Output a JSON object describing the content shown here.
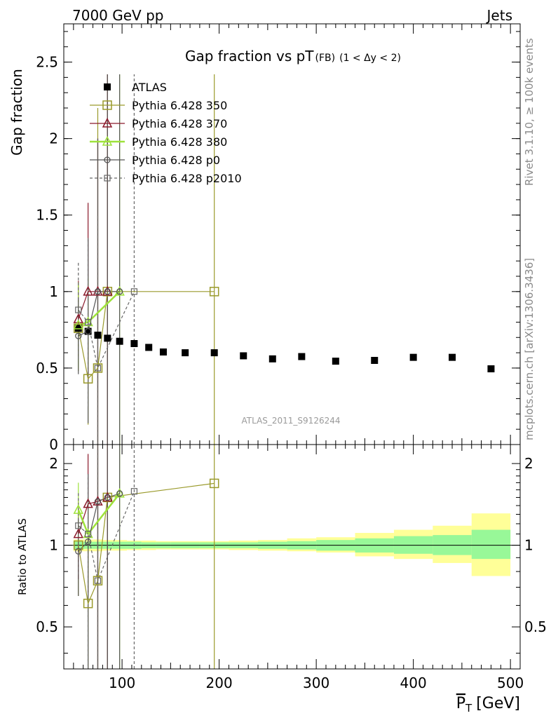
{
  "header": {
    "left": "7000 GeV pp",
    "right": "Jets"
  },
  "side_labels": {
    "rivet": "Rivet 3.1.10, ≥ 100k events",
    "mcplots": "mcplots.cern.ch [arXiv:1306.3436]"
  },
  "colors": {
    "ATLAS": "#000000",
    "p350": "#9a9a2b",
    "p370": "#8b1a2b",
    "p380": "#9ee23b",
    "p0": "#555555",
    "p2010": "#666666",
    "band_stat": "#98f898",
    "band_total": "#ffff98"
  },
  "chart_data": [
    {
      "type": "scatter",
      "title": "Gap fraction vs pT",
      "title_sub": "(FB)",
      "title_range": "(1 < Δy < 2)",
      "ylabel": "Gap fraction",
      "watermark": "ATLAS_2011_S9126244",
      "xlim": [
        40,
        510
      ],
      "ylim": [
        0,
        2.75
      ],
      "y_ticks": [
        0,
        0.5,
        1,
        1.5,
        2,
        2.5
      ],
      "y_tick_labels": [
        "0",
        "0.5",
        "1",
        "1.5",
        "2",
        "2.5"
      ],
      "grid": false,
      "legend_position": "top-left",
      "legend": [
        "ATLAS",
        "Pythia 6.428 350",
        "Pythia 6.428 370",
        "Pythia 6.428 380",
        "Pythia 6.428 p0",
        "Pythia 6.428 p2010"
      ],
      "series": [
        {
          "name": "ATLAS",
          "marker": "filled-square",
          "x": [
            55,
            65,
            75,
            85,
            97.5,
            112.5,
            127.5,
            142.5,
            165,
            195,
            225,
            255,
            285,
            320,
            360,
            400,
            440,
            480
          ],
          "y": [
            0.76,
            0.74,
            0.715,
            0.695,
            0.675,
            0.66,
            0.635,
            0.605,
            0.6,
            0.6,
            0.58,
            0.56,
            0.575,
            0.545,
            0.55,
            0.57,
            0.57,
            0.495
          ]
        },
        {
          "name": "Pythia 6.428 350",
          "marker": "open-square",
          "x": [
            55,
            65,
            75,
            85,
            195
          ],
          "y": [
            0.76,
            0.43,
            0.5,
            1.0,
            1.0
          ],
          "err": [
            0.28,
            0.3,
            1.7,
            1.42,
            1.42
          ]
        },
        {
          "name": "Pythia 6.428 370",
          "marker": "open-triangle",
          "x": [
            55,
            65,
            75,
            85
          ],
          "y": [
            0.82,
            1.0,
            1.0,
            1.0
          ],
          "err": [
            0.25,
            0.58,
            1.0,
            1.42
          ]
        },
        {
          "name": "Pythia 6.428 380",
          "marker": "open-triangle",
          "x": [
            55,
            65,
            97.5
          ],
          "y": [
            0.78,
            0.8,
            1.0
          ],
          "err": [
            0.28,
            0.3,
            1.42
          ]
        },
        {
          "name": "Pythia 6.428 p0",
          "marker": "open-circle",
          "x": [
            55,
            65,
            75,
            85,
            97.5
          ],
          "y": [
            0.71,
            0.74,
            1.0,
            1.0,
            1.0
          ],
          "err": [
            0.25,
            0.6,
            1.0,
            1.42,
            1.42
          ]
        },
        {
          "name": "Pythia 6.428 p2010",
          "marker": "open-square-small",
          "x": [
            55,
            65,
            75,
            112.5
          ],
          "y": [
            0.88,
            0.8,
            0.5,
            1.0
          ],
          "err": [
            0.32,
            0.55,
            1.0,
            1.42
          ]
        }
      ]
    },
    {
      "type": "scatter",
      "ylabel": "Ratio to ATLAS",
      "xlabel": "P̅T [GeV]",
      "xlabel_main": "P",
      "xlabel_sub": "T",
      "xlabel_unit": "[GeV]",
      "xlim": [
        40,
        510
      ],
      "ylim": [
        0.35,
        2.35
      ],
      "log_y": true,
      "x_ticks": [
        100,
        200,
        300,
        400,
        500
      ],
      "x_tick_labels": [
        "100",
        "200",
        "300",
        "400",
        "500"
      ],
      "y_ticks": [
        0.5,
        1,
        2
      ],
      "y_tick_labels": [
        "0.5",
        "1",
        "2"
      ],
      "band_edges": [
        50,
        60,
        70,
        80,
        90,
        105,
        120,
        135,
        150,
        180,
        210,
        240,
        270,
        300,
        340,
        380,
        420,
        460,
        500
      ],
      "band_stat": [
        [
          0.97,
          1.03
        ],
        [
          0.97,
          1.03
        ],
        [
          0.97,
          1.03
        ],
        [
          0.97,
          1.03
        ],
        [
          0.97,
          1.03
        ],
        [
          0.97,
          1.03
        ],
        [
          0.975,
          1.025
        ],
        [
          0.975,
          1.025
        ],
        [
          0.975,
          1.025
        ],
        [
          0.975,
          1.025
        ],
        [
          0.975,
          1.025
        ],
        [
          0.97,
          1.03
        ],
        [
          0.965,
          1.035
        ],
        [
          0.955,
          1.045
        ],
        [
          0.94,
          1.06
        ],
        [
          0.93,
          1.08
        ],
        [
          0.92,
          1.09
        ],
        [
          0.89,
          1.14
        ]
      ],
      "band_total": [
        [
          0.95,
          1.05
        ],
        [
          0.95,
          1.05
        ],
        [
          0.95,
          1.05
        ],
        [
          0.955,
          1.045
        ],
        [
          0.955,
          1.045
        ],
        [
          0.96,
          1.04
        ],
        [
          0.96,
          1.04
        ],
        [
          0.965,
          1.035
        ],
        [
          0.965,
          1.035
        ],
        [
          0.965,
          1.035
        ],
        [
          0.96,
          1.04
        ],
        [
          0.955,
          1.045
        ],
        [
          0.95,
          1.06
        ],
        [
          0.94,
          1.07
        ],
        [
          0.91,
          1.11
        ],
        [
          0.89,
          1.14
        ],
        [
          0.86,
          1.18
        ],
        [
          0.77,
          1.31
        ]
      ],
      "series": [
        {
          "name": "Pythia 6.428 350",
          "x": [
            55,
            65,
            75,
            85,
            195
          ],
          "y": [
            1.0,
            0.61,
            0.74,
            1.5,
            1.69
          ],
          "err": [
            0.35,
            0.45,
            1.8,
            1.9,
            1.9
          ]
        },
        {
          "name": "Pythia 6.428 370",
          "x": [
            55,
            65,
            75,
            85
          ],
          "y": [
            1.1,
            1.42,
            1.45,
            1.5
          ],
          "err": [
            0.35,
            0.75,
            1.9,
            1.9
          ]
        },
        {
          "name": "Pythia 6.428 380",
          "x": [
            55,
            65,
            97.5
          ],
          "y": [
            1.35,
            1.1,
            1.55
          ],
          "err": [
            0.35,
            0.4,
            1.9
          ]
        },
        {
          "name": "Pythia 6.428 p0",
          "x": [
            55,
            65,
            75,
            85,
            97.5
          ],
          "y": [
            0.95,
            1.03,
            1.45,
            1.5,
            1.55
          ],
          "err": [
            0.3,
            0.8,
            1.9,
            1.9,
            1.9
          ]
        },
        {
          "name": "Pythia 6.428 p2010",
          "x": [
            55,
            65,
            75,
            112.5
          ],
          "y": [
            1.18,
            1.1,
            0.74,
            1.58
          ],
          "err": [
            0.4,
            0.75,
            1.5,
            1.9
          ]
        }
      ]
    }
  ]
}
